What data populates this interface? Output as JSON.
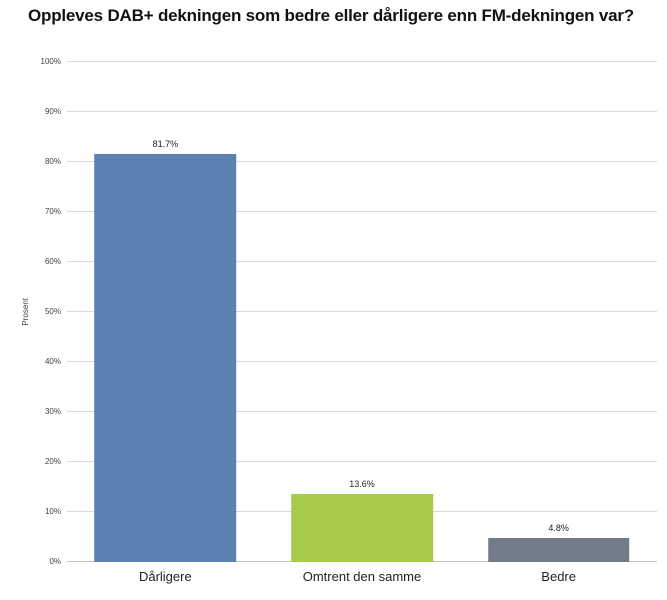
{
  "chart_data": {
    "type": "bar",
    "title": "Oppleves DAB+ dekningen som bedre eller dårligere enn FM-dekningen var?",
    "categories": [
      "Dårligere",
      "Omtrent den samme",
      "Bedre"
    ],
    "values": [
      81.7,
      13.6,
      4.8
    ],
    "data_labels": [
      "81.7%",
      "13.6%",
      "4.8%"
    ],
    "bar_colors": [
      "#5b80b2",
      "#a8cb4a",
      "#727b88"
    ],
    "xlabel": "",
    "ylabel": "Prosent",
    "ylim": [
      0,
      100
    ],
    "ytick_step": 10,
    "ytick_labels": [
      "0%",
      "10%",
      "20%",
      "30%",
      "40%",
      "50%",
      "60%",
      "70%",
      "80%",
      "90%",
      "100%"
    ],
    "grid": true,
    "gridline_color": "#d9d9d9",
    "legend_position": "none",
    "background_color": "#ffffff"
  }
}
